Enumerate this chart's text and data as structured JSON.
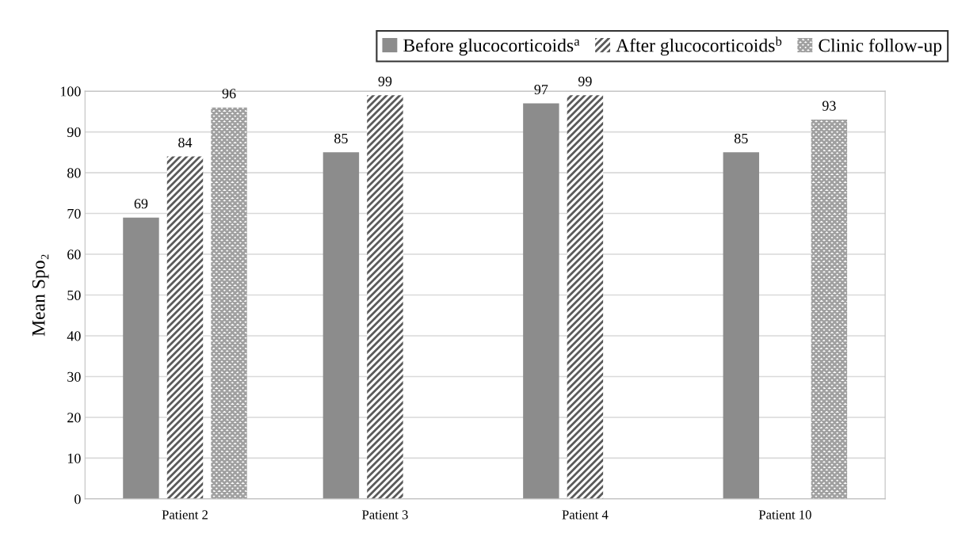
{
  "chart_data": {
    "type": "bar",
    "ylabel": "Mean Spo₂",
    "categories": [
      "Patient 2",
      "Patient 3",
      "Patient 4",
      "Patient 10"
    ],
    "series": [
      {
        "name": "Before glucocorticoids$^{a}$",
        "color": "#8c8c8c",
        "values": [
          69,
          85,
          97,
          85
        ]
      },
      {
        "name": "After glucocorticoids$^{b}$",
        "color": "#5a5a5a",
        "values": [
          84,
          99,
          99,
          null
        ]
      },
      {
        "name": "Clinic follow-up",
        "color": "#a0a0a0",
        "values": [
          96,
          null,
          null,
          93
        ]
      }
    ],
    "ylim": [
      0,
      100
    ],
    "yticks": [
      0,
      10,
      20,
      30,
      40,
      50,
      60,
      70,
      80,
      90,
      100
    ],
    "grid": "y",
    "legend": "top right",
    "data_labels": true
  }
}
